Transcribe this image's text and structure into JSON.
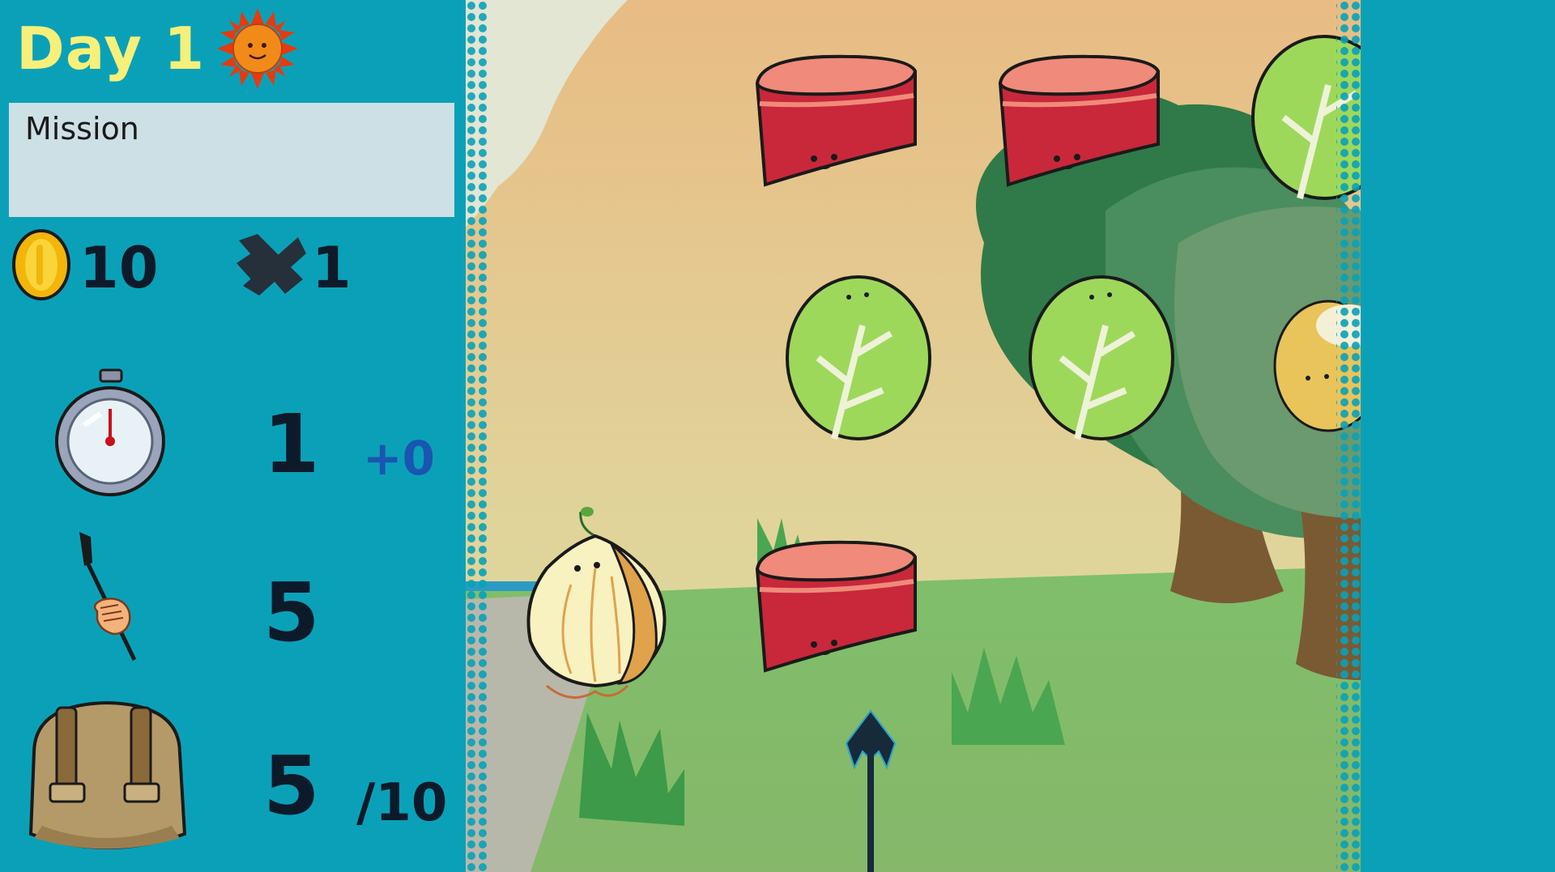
{
  "hud": {
    "day_label": "Day 1",
    "mission_label": "Mission",
    "coins": "10",
    "spears": "1",
    "timer": "1",
    "timer_bonus": "+0",
    "throw_power": "5",
    "bag_count": "5",
    "bag_capacity": "/10"
  },
  "icons": [
    "sun-icon",
    "coin-icon",
    "spear-bundle-icon",
    "stopwatch-icon",
    "hand-spear-icon",
    "backpack-icon"
  ],
  "scene": {
    "targets": [
      "meat",
      "meat",
      "lettuce",
      "lettuce",
      "lettuce",
      "corn",
      "meat"
    ],
    "player": "onion",
    "weapon": "spear"
  },
  "colors": {
    "panel": "#0aa1b8",
    "day_text": "#f6f07a",
    "mission_box": "#cde0e6",
    "bonus_text": "#1a55b0"
  }
}
